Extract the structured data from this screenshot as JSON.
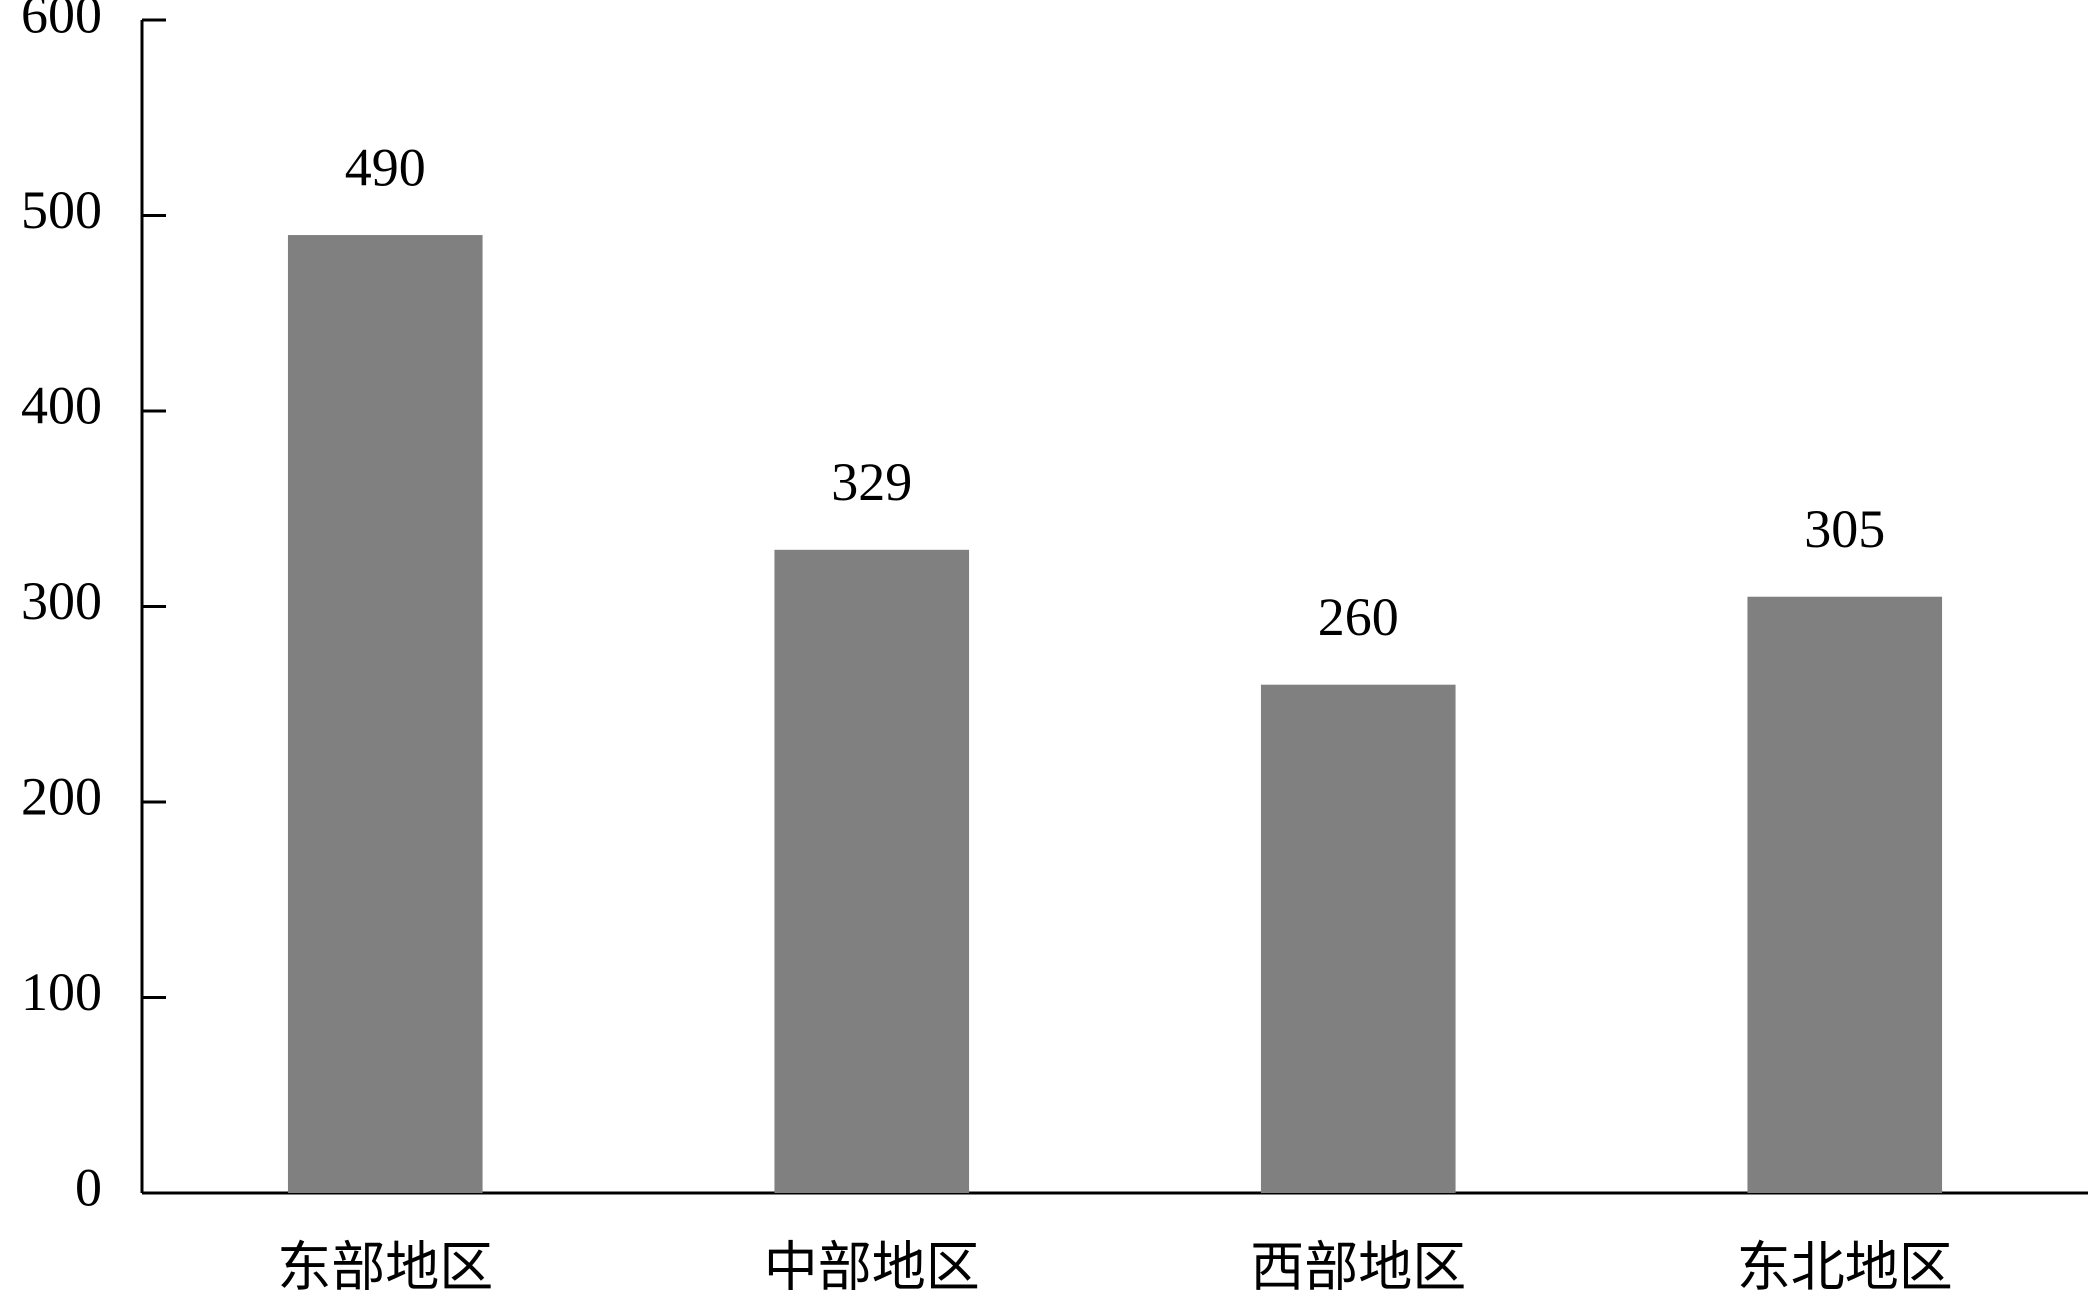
{
  "chart_data": {
    "type": "bar",
    "categories": [
      "东部地区",
      "中部地区",
      "西部地区",
      "东北地区"
    ],
    "values": [
      490,
      329,
      260,
      305
    ],
    "color": "#808080",
    "ylim": [
      0,
      600
    ],
    "yticks": [
      0,
      100,
      200,
      300,
      400,
      500,
      600
    ],
    "grid": false
  }
}
